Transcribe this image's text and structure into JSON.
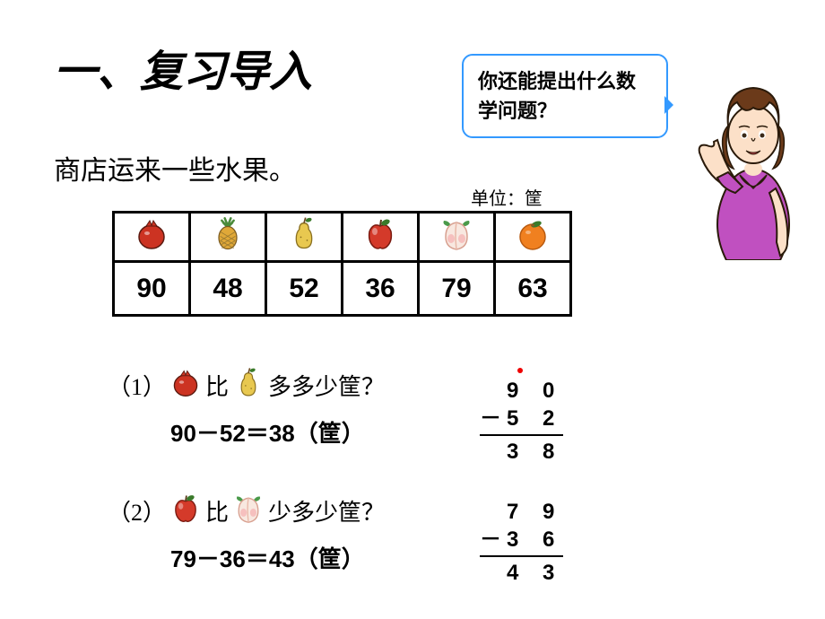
{
  "title": "一、复习导入",
  "speech": "你还能提出什么数学问题？",
  "subtitle": "商店运来一些水果。",
  "unit_label": "单位：筐",
  "fruits": {
    "pomegranate": {
      "value": "90",
      "color": "#cc3322",
      "leaf": "#3a7a2a"
    },
    "pineapple": {
      "value": "48",
      "body": "#e0a838",
      "leaf": "#4a8a3a"
    },
    "pear": {
      "value": "52",
      "color": "#e8c850",
      "leaf": "#3a7a2a"
    },
    "apple": {
      "value": "36",
      "color": "#d43a2a",
      "leaf": "#3a7a2a"
    },
    "peach": {
      "value": "79",
      "color": "#f8e8e0",
      "blush": "#f5b5b5",
      "leaf": "#4a9a4a"
    },
    "orange": {
      "value": "63",
      "color": "#f08020",
      "leaf": "#3a7a2a"
    }
  },
  "q1": {
    "index": "（1）",
    "mid1": "比",
    "mid2": "多多少筐？",
    "equation": "90－52＝38（筐）",
    "calc": {
      "a": "9 0",
      "b": "5 2",
      "r": "3 8",
      "op": "－",
      "dot": true
    }
  },
  "q2": {
    "index": "（2）",
    "mid1": "比",
    "mid2": "少多少筐？",
    "equation": "79－36＝43（筐）",
    "calc": {
      "a": "7 9",
      "b": "3 6",
      "r": "4 3",
      "op": "－",
      "dot": false
    }
  },
  "teacher_colors": {
    "hair": "#6b3a1a",
    "skin": "#fce0c8",
    "shirt": "#c050c0",
    "collar": "#ffffff",
    "lips": "#d04050",
    "outline": "#2a1a0a"
  }
}
